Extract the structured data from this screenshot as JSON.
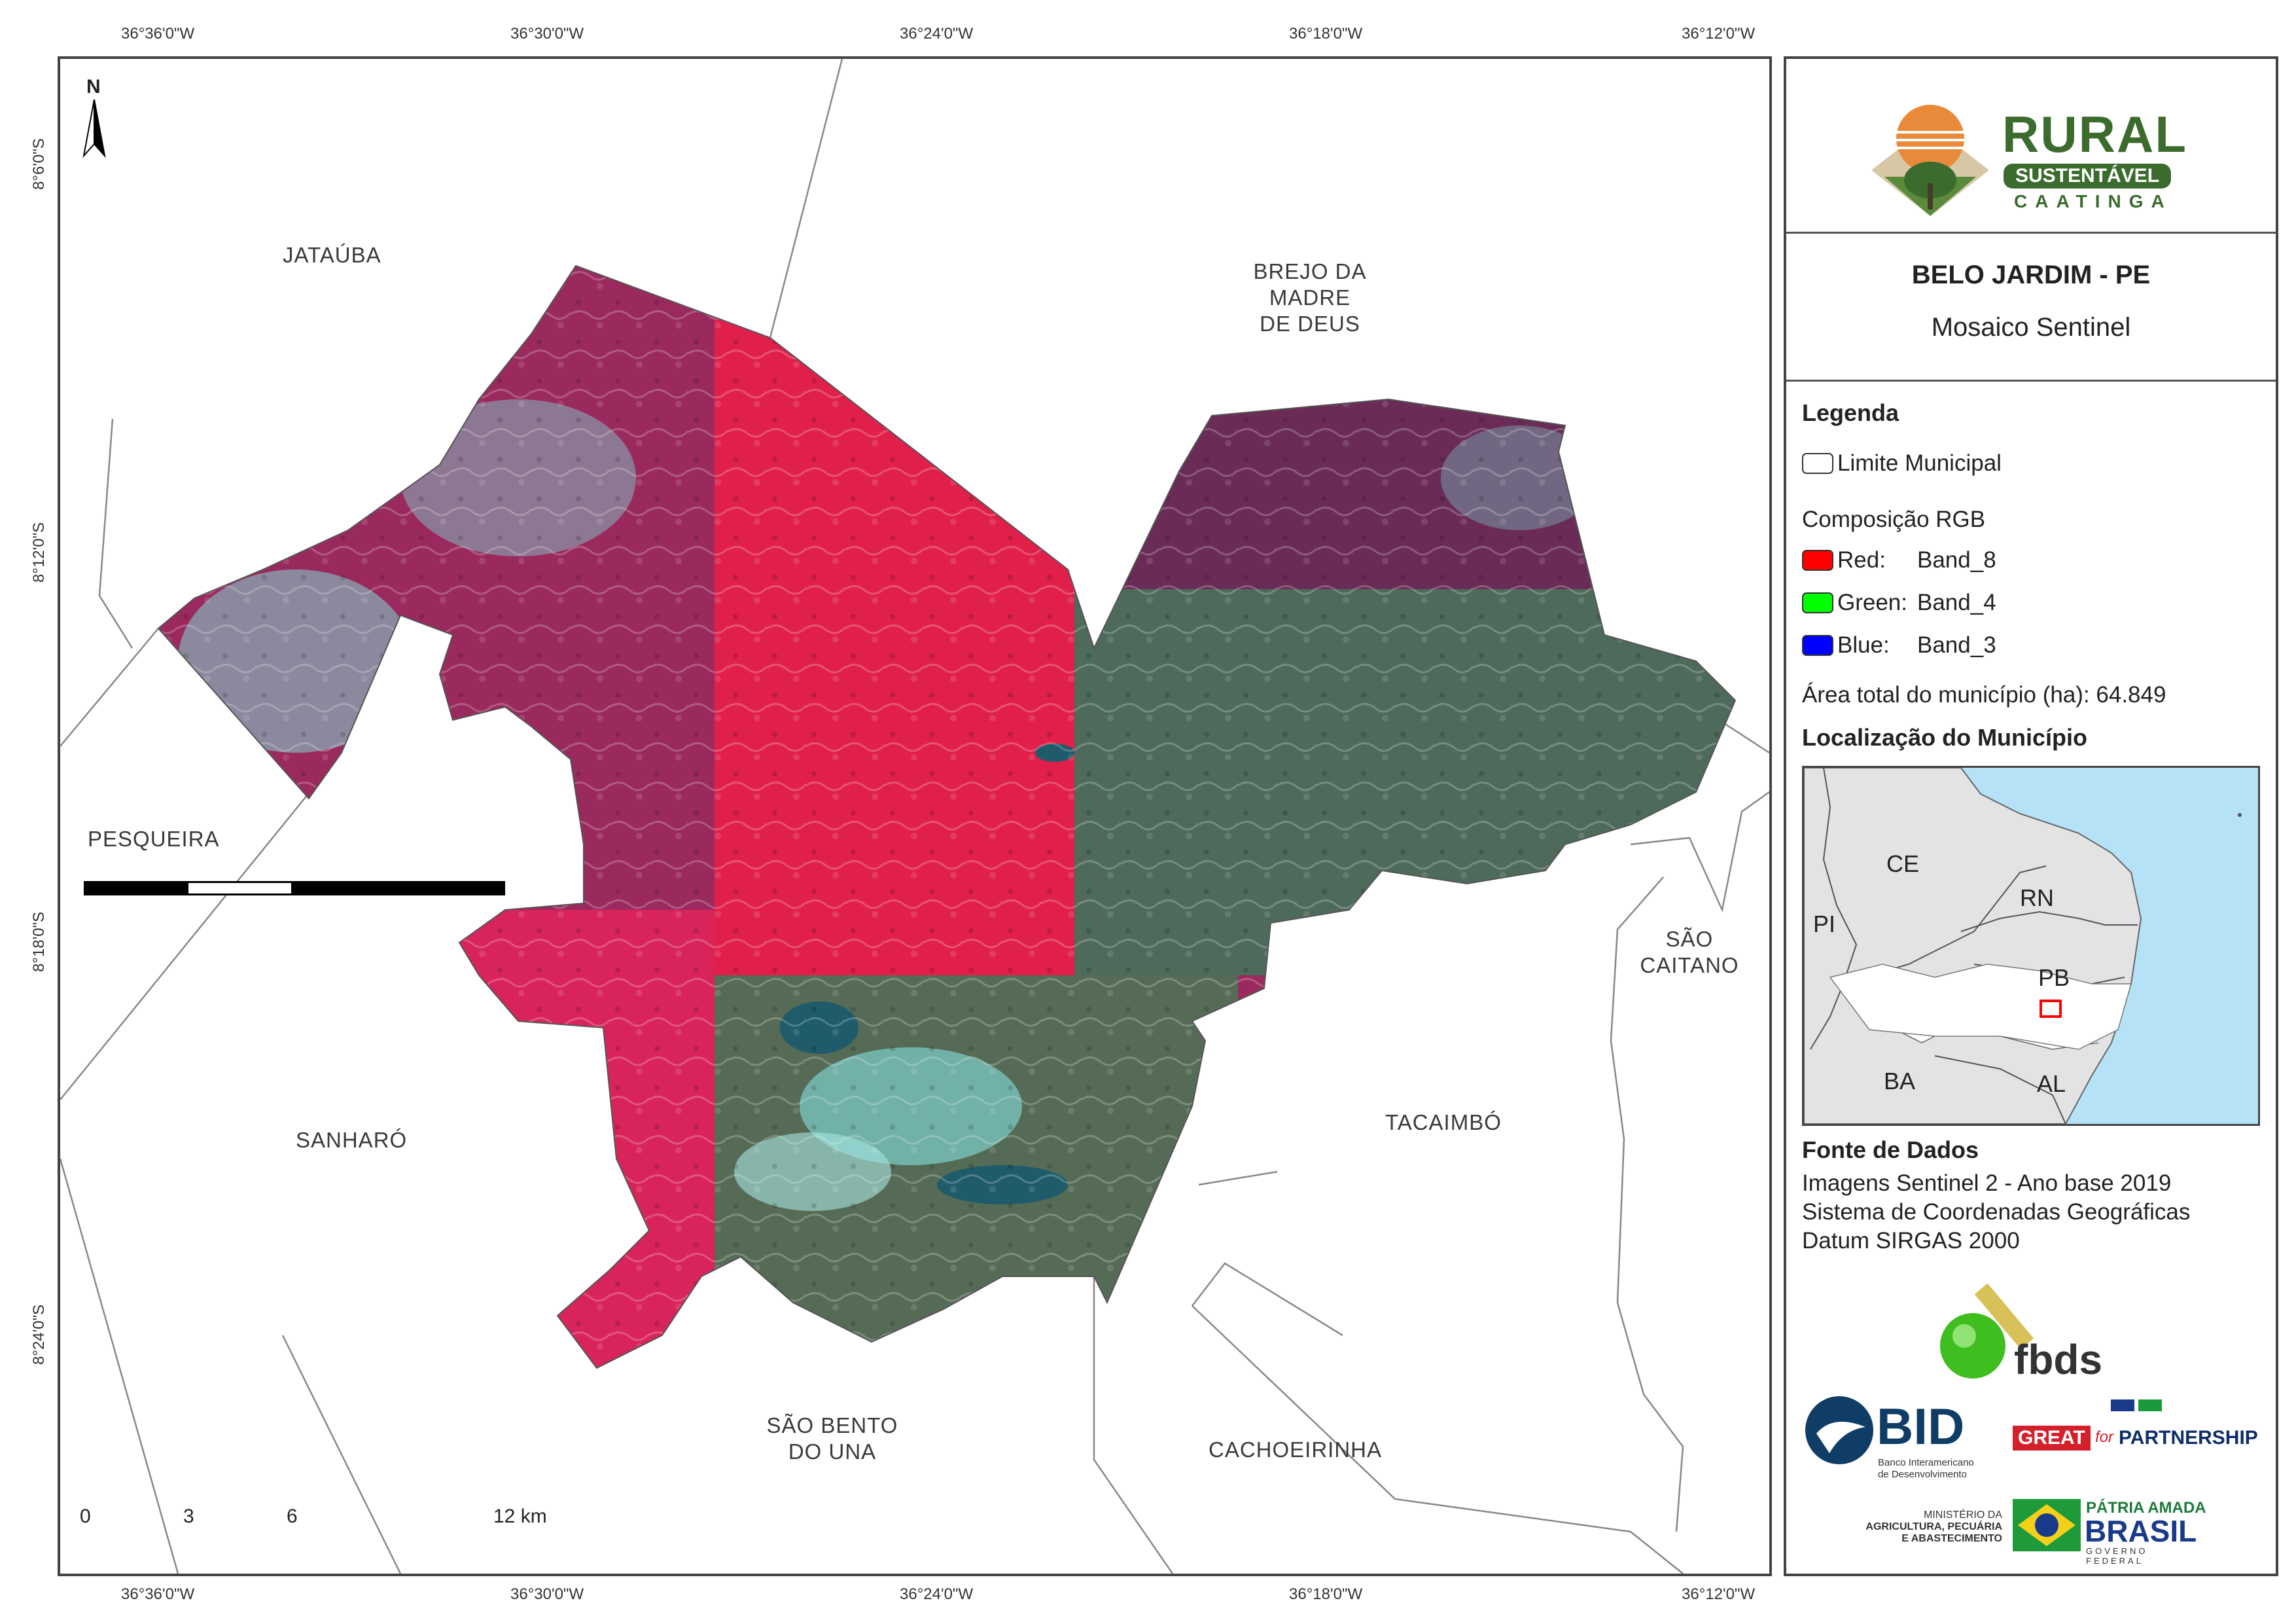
{
  "map": {
    "north_label": "N",
    "graticule_top": [
      "36°36'0\"W",
      "36°30'0\"W",
      "36°24'0\"W",
      "36°18'0\"W",
      "36°12'0\"W"
    ],
    "graticule_bottom": [
      "36°36'0\"W",
      "36°30'0\"W",
      "36°24'0\"W",
      "36°18'0\"W",
      "36°12'0\"W"
    ],
    "graticule_left": [
      "8°6'0\"S",
      "8°12'0\"S",
      "8°18'0\"S",
      "8°24'0\"S"
    ],
    "neighbors": {
      "jatauba": "JATAÚBA",
      "brejo": [
        "BREJO DA",
        "MADRE",
        "DE DEUS"
      ],
      "pesqueira": "PESQUEIRA",
      "sanharo": "SANHARÓ",
      "sao_caitano": [
        "SÃO",
        "CAITANO"
      ],
      "tacaimbo": "TACAIMBÓ",
      "sao_bento": [
        "SÃO BENTO",
        "DO UNA"
      ],
      "cachoeirinha": "CACHOEIRINHA"
    },
    "scale_bar": {
      "labels": [
        "0",
        "3",
        "6",
        "12 km"
      ]
    }
  },
  "panel": {
    "logo": {
      "rural": "RURAL",
      "sustentavel": "SUSTENTÁVEL",
      "caatinga": "CAATINGA"
    },
    "title": "BELO JARDIM - PE",
    "subtitle": "Mosaico Sentinel",
    "legend": {
      "heading": "Legenda",
      "limit": "Limite Municipal",
      "rgb_heading": "Composição RGB",
      "bands": [
        {
          "label": "Red:",
          "band": "Band_8",
          "color": "#ff0000"
        },
        {
          "label": "Green:",
          "band": "Band_4",
          "color": "#00ff00"
        },
        {
          "label": "Blue:",
          "band": "Band_3",
          "color": "#0000ff"
        }
      ],
      "area_text": "Área total do município (ha): 64.849"
    },
    "location": {
      "heading": "Localização do Município",
      "states": [
        "CE",
        "RN",
        "PI",
        "PB",
        "BA",
        "AL"
      ]
    },
    "sources": {
      "heading": "Fonte de Dados",
      "lines": [
        "Imagens Sentinel 2 - Ano base 2019",
        "Sistema de Coordenadas Geográficas",
        "Datum SIRGAS 2000"
      ]
    },
    "partners": {
      "fbds": "fbds",
      "bid": "BID",
      "bid_sub": [
        "Banco Interamericano",
        "de Desenvolvimento"
      ],
      "great": "GREAT",
      "for": "for",
      "partnership": "PARTNERSHIP",
      "ministerio": [
        "MINISTÉRIO DA",
        "AGRICULTURA, PECUÁRIA",
        "E ABASTECIMENTO"
      ],
      "patria": "PÁTRIA AMADA",
      "brasil": "BRASIL",
      "governo": "GOVERNO FEDERAL"
    }
  },
  "colors": {
    "map_red": "#e0204a",
    "map_magenta": "#9a2a5e",
    "map_green": "#4e6a5a",
    "map_cyan": "#7fd7d4",
    "ocean": "#b6e2f8",
    "land": "#e3e3e3",
    "logo_green": "#3b6b2d",
    "logo_orange": "#e88a3a"
  }
}
